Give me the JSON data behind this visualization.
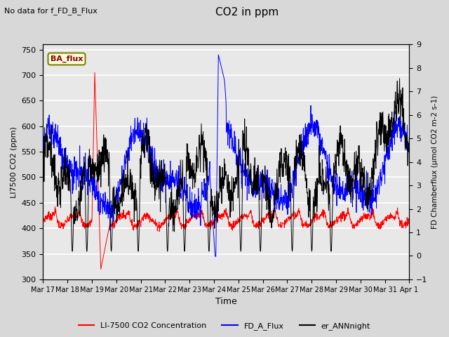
{
  "title": "CO2 in ppm",
  "top_left_text": "No data for f_FD_B_Flux",
  "ba_flux_label": "BA_flux",
  "xlabel": "Time",
  "ylabel_left": "LI7500 CO2 (ppm)",
  "ylabel_right": "FD Chamberflux (μmol CO2 m-2 s-1)",
  "ylim_left": [
    300,
    760
  ],
  "ylim_right": [
    -1.0,
    9.0
  ],
  "yticks_left": [
    300,
    350,
    400,
    450,
    500,
    550,
    600,
    650,
    700,
    750
  ],
  "yticks_right": [
    -1.0,
    0.0,
    1.0,
    2.0,
    3.0,
    4.0,
    5.0,
    6.0,
    7.0,
    8.0,
    9.0
  ],
  "xtick_labels": [
    "Mar 17",
    "Mar 18",
    "Mar 19",
    "Mar 20",
    "Mar 21",
    "Mar 22",
    "Mar 23",
    "Mar 24",
    "Mar 25",
    "Mar 26",
    "Mar 27",
    "Mar 28",
    "Mar 29",
    "Mar 30",
    "Mar 31",
    "Apr 1"
  ],
  "legend_entries": [
    "LI-7500 CO2 Concentration",
    "FD_A_Flux",
    "er_ANNnight"
  ],
  "legend_colors": [
    "red",
    "blue",
    "black"
  ],
  "bg_color": "#d8d8d8",
  "plot_bg_color": "#e8e8e8",
  "grid_color": "white",
  "n_points": 1440,
  "seed": 7
}
